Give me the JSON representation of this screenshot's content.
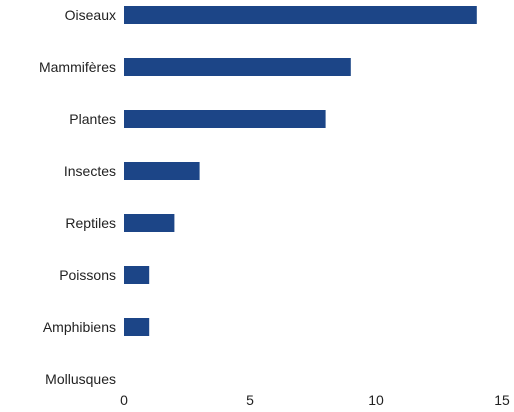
{
  "chart_data": {
    "type": "bar",
    "orientation": "horizontal",
    "categories": [
      "Oiseaux",
      "Mammifères",
      "Plantes",
      "Insectes",
      "Reptiles",
      "Poissons",
      "Amphibiens",
      "Mollusques"
    ],
    "values": [
      14,
      9,
      8,
      3,
      2,
      1,
      1,
      0
    ],
    "xlim": [
      0,
      15
    ],
    "xticks": [
      0,
      5,
      10,
      15
    ],
    "grid": false,
    "title": "",
    "xlabel": "",
    "ylabel": "",
    "bar_color": "#1c4587"
  }
}
